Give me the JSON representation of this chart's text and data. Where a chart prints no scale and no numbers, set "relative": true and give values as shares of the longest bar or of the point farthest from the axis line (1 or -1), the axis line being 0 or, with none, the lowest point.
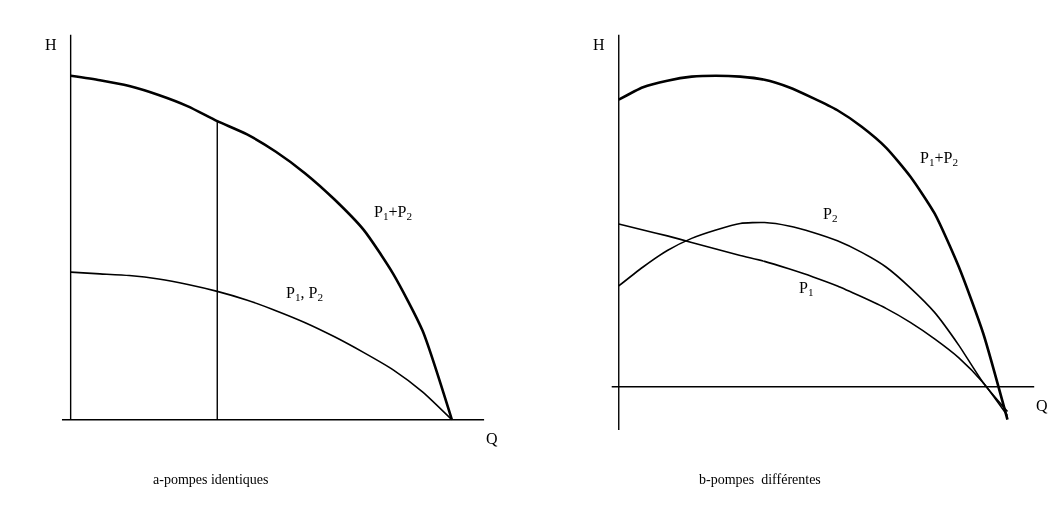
{
  "chart_data": [
    {
      "type": "line",
      "relative": true,
      "xlabel": "Q",
      "ylabel": "H",
      "annotations": [
        "a-pompes identiques"
      ],
      "categories": [
        null,
        null,
        null,
        null,
        null,
        null,
        null,
        null,
        null,
        null,
        null,
        null,
        null,
        null
      ],
      "marker": "none",
      "line_style": "solid",
      "series": [
        {
          "name": "P$_{1}$+P$_{2}$",
          "color": "#000000",
          "values": [
            1,
            0.987,
            0.97,
            0.944,
            0.911,
            0.868,
            0.83,
            0.779,
            0.716,
            0.64,
            0.551,
            0.424,
            0.259,
            0
          ]
        },
        {
          "name": "P$_{1}$, P$_{2}$",
          "color": "#000000",
          "values": [
            0.429,
            0.424,
            0.419,
            0.409,
            0.393,
            0.373,
            0.348,
            0.317,
            0.282,
            0.241,
            0.195,
            0.145,
            0.081,
            0
          ]
        }
      ]
    },
    {
      "type": "line",
      "relative": true,
      "xlabel": "Q",
      "ylabel": "H",
      "annotations": [
        "b-pompes  différentes"
      ],
      "categories": [
        null,
        null,
        null,
        null,
        null,
        null,
        null,
        null,
        null,
        null,
        null,
        null,
        null,
        null,
        null,
        null,
        null
      ],
      "marker": "none",
      "line_style": "solid",
      "series": [
        {
          "name": "P$_{1}$+P$_{2}$",
          "color": "#000000",
          "values": [
            0.923,
            0.963,
            0.984,
            0.997,
            1,
            0.997,
            0.987,
            0.963,
            0.928,
            0.889,
            0.836,
            0.769,
            0.676,
            0.557,
            0.385,
            0.172,
            -0.106
          ]
        },
        {
          "name": "P$_{2}$",
          "color": "#000000",
          "values": [
            0.324,
            0.385,
            0.438,
            0.477,
            0.504,
            0.525,
            0.528,
            0.517,
            0.496,
            0.469,
            0.432,
            0.385,
            0.318,
            0.239,
            0.133,
            0.013,
            -0.08
          ]
        },
        {
          "name": "P$_{1}$",
          "color": "#000000",
          "values": [
            0.523,
            0.504,
            0.485,
            0.464,
            0.443,
            0.422,
            0.403,
            0.379,
            0.353,
            0.324,
            0.289,
            0.252,
            0.207,
            0.154,
            0.093,
            0.013,
            -0.093
          ]
        }
      ]
    }
  ]
}
